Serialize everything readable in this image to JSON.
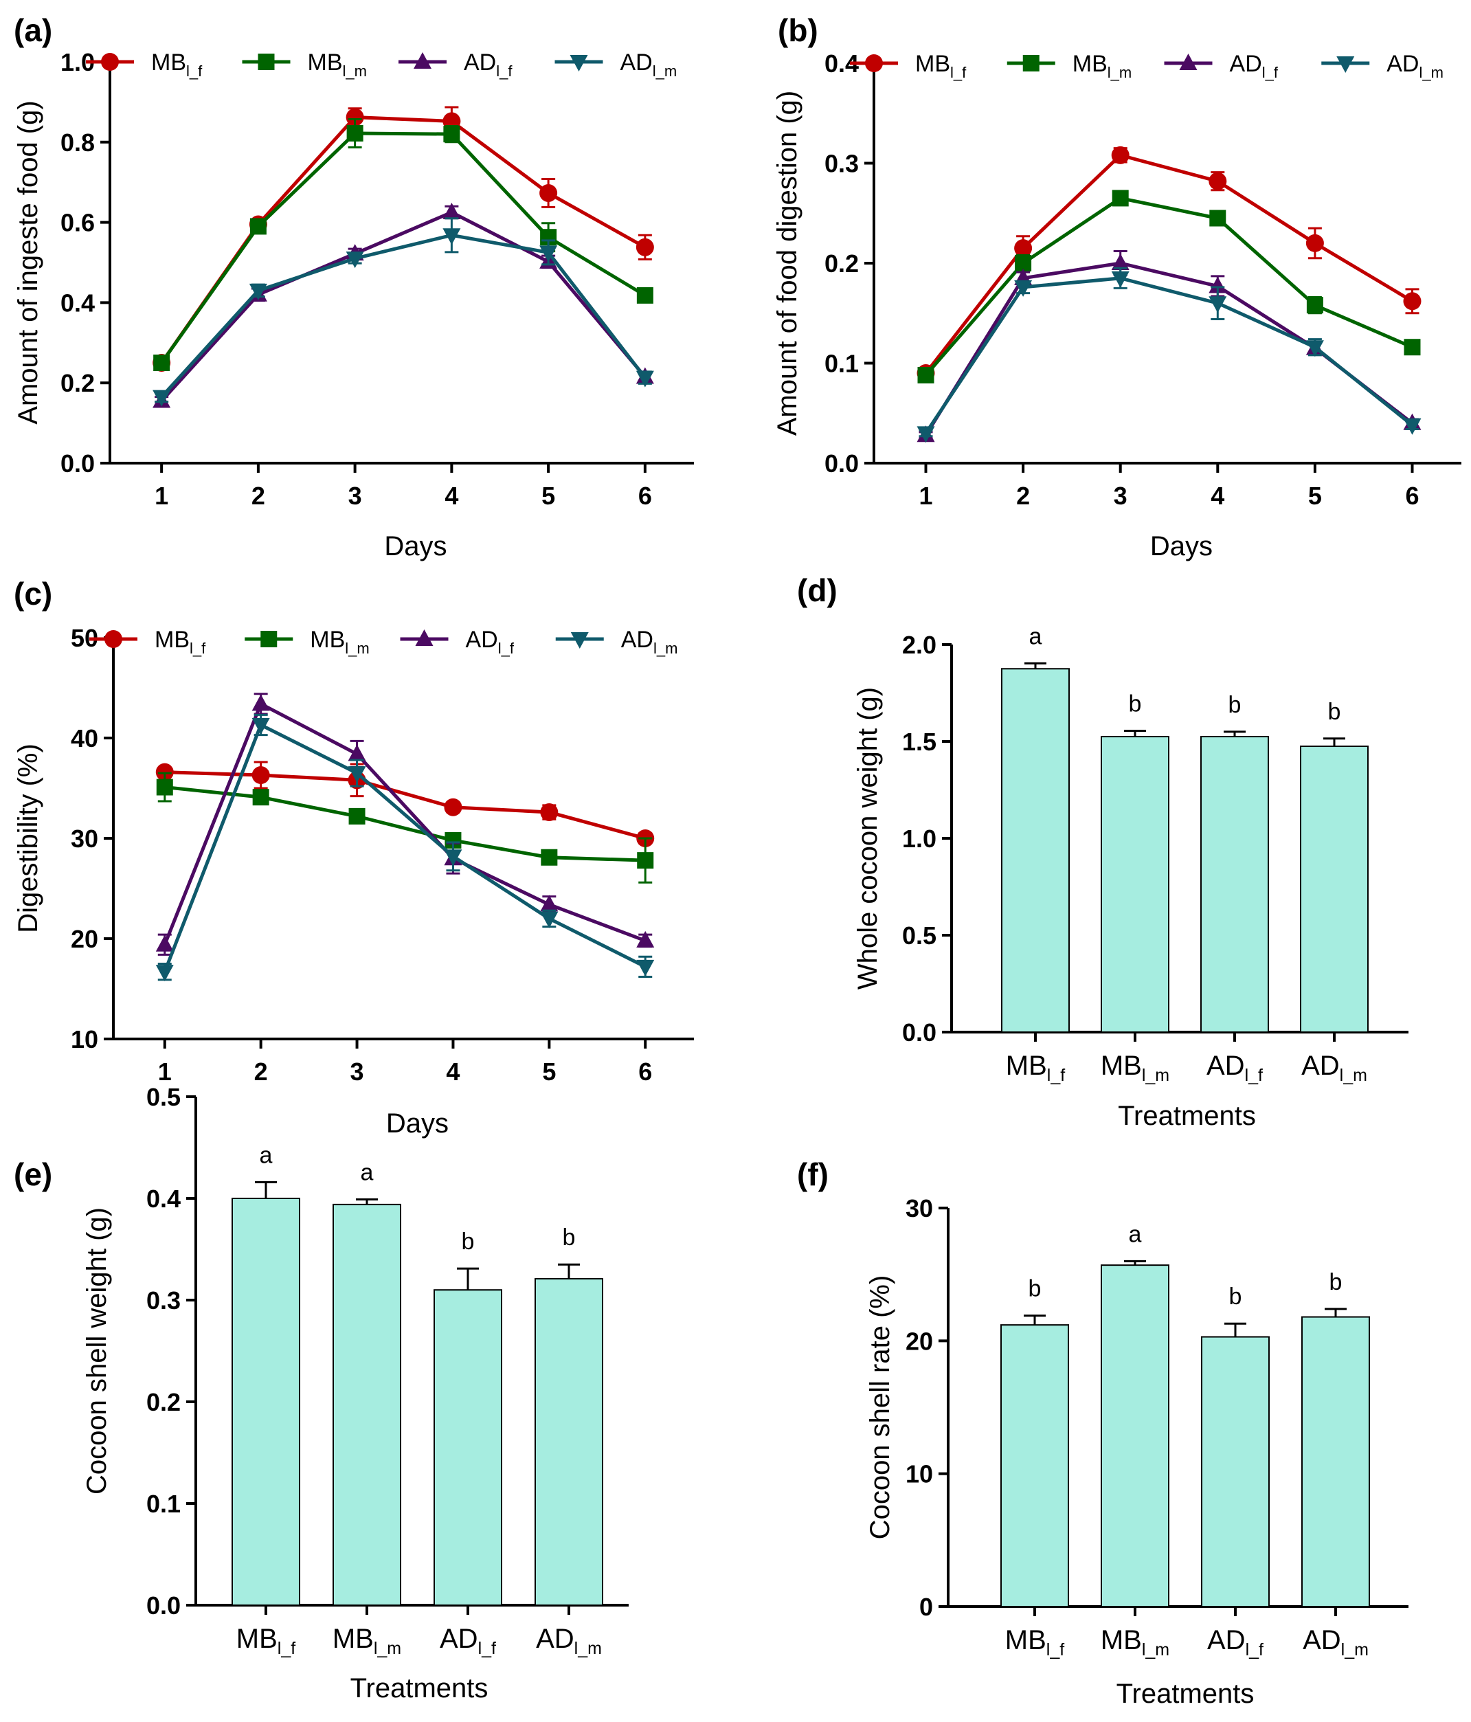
{
  "colors": {
    "MB_f": "#c00000",
    "MB_m": "#006400",
    "AD_f": "#4b0a62",
    "AD_m": "#0f5a6b",
    "bar_fill": "#a6ede0",
    "axis": "#000000"
  },
  "chart_data": [
    {
      "id": "a",
      "panel": "(a)",
      "type": "line",
      "xlabel": "Days",
      "ylabel": "Amount of ingeste food (g)",
      "x": [
        "1",
        "2",
        "3",
        "4",
        "5",
        "6"
      ],
      "ylim": [
        0.0,
        1.0
      ],
      "yticks": [
        "0.0",
        "0.2",
        "0.4",
        "0.6",
        "0.8",
        "1.0"
      ],
      "legend_position": "top",
      "series": [
        {
          "key": "MB_f",
          "base": "MB",
          "sub": "l_f",
          "marker": "circle",
          "values": [
            0.25,
            0.595,
            0.862,
            0.852,
            0.673,
            0.538
          ],
          "errors": [
            0.01,
            0.01,
            0.022,
            0.035,
            0.035,
            0.03
          ]
        },
        {
          "key": "MB_m",
          "base": "MB",
          "sub": "l_m",
          "marker": "square",
          "values": [
            0.25,
            0.59,
            0.822,
            0.82,
            0.563,
            0.418
          ],
          "errors": [
            0.01,
            0.01,
            0.035,
            0.02,
            0.035,
            0.01
          ]
        },
        {
          "key": "AD_f",
          "base": "AD",
          "sub": "l_f",
          "marker": "triangle-up",
          "values": [
            0.155,
            0.42,
            0.522,
            0.625,
            0.502,
            0.215
          ],
          "errors": [
            0.01,
            0.015,
            0.012,
            0.015,
            0.015,
            0.01
          ]
        },
        {
          "key": "AD_m",
          "base": "AD",
          "sub": "l_m",
          "marker": "triangle-down",
          "values": [
            0.165,
            0.43,
            0.51,
            0.568,
            0.525,
            0.213
          ],
          "errors": [
            0.012,
            0.015,
            0.012,
            0.042,
            0.03,
            0.015
          ]
        }
      ]
    },
    {
      "id": "b",
      "panel": "(b)",
      "type": "line",
      "xlabel": "Days",
      "ylabel": "Amount of food digestion (g)",
      "x": [
        "1",
        "2",
        "3",
        "4",
        "5",
        "6"
      ],
      "ylim": [
        0.0,
        0.4
      ],
      "yticks": [
        "0.0",
        "0.1",
        "0.2",
        "0.3",
        "0.4"
      ],
      "legend_position": "top",
      "series": [
        {
          "key": "MB_f",
          "base": "MB",
          "sub": "l_f",
          "marker": "circle",
          "values": [
            0.09,
            0.215,
            0.308,
            0.282,
            0.22,
            0.162
          ],
          "errors": [
            0.004,
            0.012,
            0.007,
            0.009,
            0.015,
            0.012
          ]
        },
        {
          "key": "MB_m",
          "base": "MB",
          "sub": "l_m",
          "marker": "square",
          "values": [
            0.088,
            0.2,
            0.265,
            0.245,
            0.158,
            0.116
          ],
          "errors": [
            0.004,
            0.008,
            0.006,
            0.005,
            0.008,
            0.005
          ]
        },
        {
          "key": "AD_f",
          "base": "AD",
          "sub": "l_f",
          "marker": "triangle-up",
          "values": [
            0.028,
            0.185,
            0.2,
            0.177,
            0.115,
            0.04
          ],
          "errors": [
            0.003,
            0.006,
            0.012,
            0.01,
            0.006,
            0.004
          ]
        },
        {
          "key": "AD_m",
          "base": "AD",
          "sub": "l_m",
          "marker": "triangle-down",
          "values": [
            0.03,
            0.176,
            0.185,
            0.16,
            0.116,
            0.038
          ],
          "errors": [
            0.003,
            0.006,
            0.01,
            0.016,
            0.008,
            0.004
          ]
        }
      ]
    },
    {
      "id": "c",
      "panel": "(c)",
      "type": "line",
      "xlabel": "Days",
      "ylabel": "Digestibility (%)",
      "x": [
        "1",
        "2",
        "3",
        "4",
        "5",
        "6"
      ],
      "ylim": [
        10,
        50
      ],
      "yticks": [
        "10",
        "20",
        "30",
        "40",
        "50"
      ],
      "legend_position": "top",
      "series": [
        {
          "key": "MB_f",
          "base": "MB",
          "sub": "l_f",
          "marker": "circle",
          "values": [
            36.6,
            36.3,
            35.8,
            33.1,
            32.6,
            30.0
          ],
          "errors": [
            0.4,
            1.3,
            1.6,
            0.5,
            0.7,
            0.5
          ]
        },
        {
          "key": "MB_m",
          "base": "MB",
          "sub": "l_m",
          "marker": "square",
          "values": [
            35.1,
            34.1,
            32.2,
            29.8,
            28.1,
            27.8
          ],
          "errors": [
            1.4,
            0.6,
            0.5,
            0.6,
            0.5,
            2.2
          ]
        },
        {
          "key": "AD_f",
          "base": "AD",
          "sub": "l_f",
          "marker": "triangle-up",
          "values": [
            19.4,
            43.4,
            38.4,
            28.0,
            23.4,
            19.8
          ],
          "errors": [
            1.0,
            1.0,
            1.3,
            1.5,
            0.8,
            0.6
          ]
        },
        {
          "key": "AD_m",
          "base": "AD",
          "sub": "l_m",
          "marker": "triangle-down",
          "values": [
            16.7,
            41.3,
            36.5,
            28.2,
            22.0,
            17.2
          ],
          "errors": [
            0.8,
            1.0,
            1.3,
            1.4,
            0.8,
            1.0
          ]
        }
      ]
    },
    {
      "id": "d",
      "panel": "(d)",
      "type": "bar",
      "xlabel": "Treatments",
      "ylabel": "Whole cocoon weight (g)",
      "categories": [
        {
          "base": "MB",
          "sub": "l_f"
        },
        {
          "base": "MB",
          "sub": "l_m"
        },
        {
          "base": "AD",
          "sub": "l_f"
        },
        {
          "base": "AD",
          "sub": "l_m"
        }
      ],
      "values": [
        1.875,
        1.525,
        1.525,
        1.475
      ],
      "errors": [
        0.028,
        0.03,
        0.025,
        0.04
      ],
      "letters": [
        "a",
        "b",
        "b",
        "b"
      ],
      "ylim": [
        0.0,
        2.0
      ],
      "yticks": [
        "0.0",
        "0.5",
        "1.0",
        "1.5",
        "2.0"
      ]
    },
    {
      "id": "e",
      "panel": "(e)",
      "type": "bar",
      "xlabel": "Treatments",
      "ylabel": "Cocoon shell weight (g)",
      "categories": [
        {
          "base": "MB",
          "sub": "l_f"
        },
        {
          "base": "MB",
          "sub": "l_m"
        },
        {
          "base": "AD",
          "sub": "l_f"
        },
        {
          "base": "AD",
          "sub": "l_m"
        }
      ],
      "values": [
        0.4,
        0.394,
        0.31,
        0.321
      ],
      "errors": [
        0.016,
        0.005,
        0.021,
        0.014
      ],
      "letters": [
        "a",
        "a",
        "b",
        "b"
      ],
      "ylim": [
        0.0,
        0.5
      ],
      "yticks": [
        "0.0",
        "0.1",
        "0.2",
        "0.3",
        "0.4",
        "0.5"
      ]
    },
    {
      "id": "f",
      "panel": "(f)",
      "type": "bar",
      "xlabel": "Treatments",
      "ylabel": "Cocoon shell rate (%)",
      "categories": [
        {
          "base": "MB",
          "sub": "l_f"
        },
        {
          "base": "MB",
          "sub": "l_m"
        },
        {
          "base": "AD",
          "sub": "l_f"
        },
        {
          "base": "AD",
          "sub": "l_m"
        }
      ],
      "values": [
        21.2,
        25.7,
        20.3,
        21.8
      ],
      "errors": [
        0.7,
        0.3,
        1.0,
        0.6
      ],
      "letters": [
        "b",
        "a",
        "b",
        "b"
      ],
      "ylim": [
        0,
        30
      ],
      "yticks": [
        "0",
        "10",
        "20",
        "30"
      ]
    }
  ]
}
